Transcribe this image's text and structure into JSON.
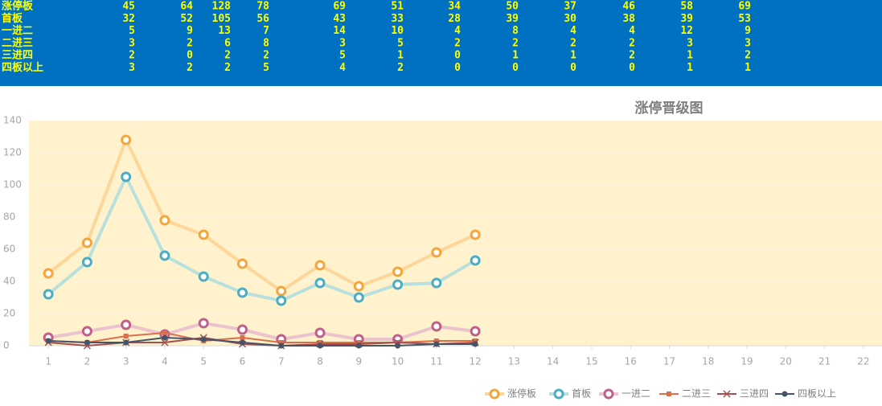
{
  "chart_data": {
    "type": "line",
    "title": "涨停晋级图",
    "x": [
      1,
      2,
      3,
      4,
      5,
      6,
      7,
      8,
      9,
      10,
      11,
      12
    ],
    "xlim": [
      0.5,
      22.5
    ],
    "xticks": [
      1,
      2,
      3,
      4,
      5,
      6,
      7,
      8,
      9,
      10,
      11,
      12,
      13,
      14,
      15,
      16,
      17,
      18,
      19,
      20,
      21,
      22
    ],
    "ylim": [
      0,
      140
    ],
    "yticks": [
      0,
      20,
      40,
      60,
      80,
      100,
      120,
      140
    ],
    "series": [
      {
        "name": "涨停板",
        "color": "#ffd699",
        "marker_color": "#f4a63a",
        "marker": "ring",
        "values": [
          45,
          64,
          128,
          78,
          69,
          51,
          34,
          50,
          37,
          46,
          58,
          69
        ]
      },
      {
        "name": "首板",
        "color": "#b8e0dc",
        "marker_color": "#4bacc6",
        "marker": "ring",
        "values": [
          32,
          52,
          105,
          56,
          43,
          33,
          28,
          39,
          30,
          38,
          39,
          53
        ]
      },
      {
        "name": "一进二",
        "color": "#ecc2cf",
        "marker_color": "#c0608a",
        "marker": "ring",
        "values": [
          5,
          9,
          13,
          7,
          14,
          10,
          4,
          8,
          4,
          4,
          12,
          9
        ]
      },
      {
        "name": "二进三",
        "color": "#d9704a",
        "marker_color": "#d9704a",
        "marker": "square",
        "values": [
          3,
          2,
          6,
          8,
          3,
          5,
          2,
          2,
          2,
          2,
          3,
          3
        ]
      },
      {
        "name": "三进四",
        "color": "#a05050",
        "marker_color": "#a05050",
        "marker": "x",
        "values": [
          2,
          0,
          2,
          2,
          5,
          1,
          0,
          1,
          1,
          2,
          1,
          2
        ]
      },
      {
        "name": "四板以上",
        "color": "#44546a",
        "marker_color": "#44546a",
        "marker": "circle",
        "values": [
          3,
          2,
          2,
          5,
          4,
          2,
          0,
          0,
          0,
          0,
          1,
          1
        ]
      }
    ]
  }
}
